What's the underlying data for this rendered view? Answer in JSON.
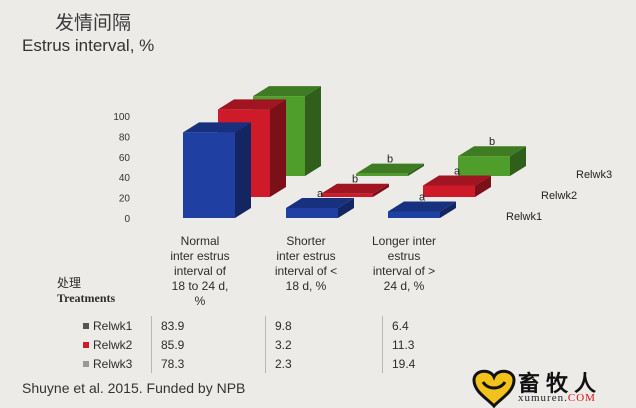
{
  "title_cn": "发情间隔",
  "title_en": "Estrus interval, %",
  "treatments_label_cn": "处理",
  "treatments_label_en": "Treatments",
  "source": "Shuyne et al. 2015.  Funded by NPB",
  "logo": {
    "text_cn": "畜牧人",
    "text_en": "xumuren.",
    "text_com": "COM"
  },
  "colors": {
    "Relwk1": "#1f3fa3",
    "Relwk2": "#cf1a2a",
    "Relwk3": "#4f9e2b"
  },
  "chart_data": {
    "type": "bar",
    "subtype": "3d-clustered",
    "title": "Estrus interval, %",
    "ylim": [
      0,
      100
    ],
    "yticks": [
      0,
      20,
      40,
      60,
      80,
      100
    ],
    "categories": [
      "Normal\ninter estrus\ninterval of\n18 to 24 d,\n%",
      "Shorter\ninter estrus\ninterval of <\n18 d, %",
      "Longer inter\nestrus\ninterval of  >\n24 d, %"
    ],
    "series": [
      {
        "name": "Relwk1",
        "values": [
          83.9,
          9.8,
          6.4
        ],
        "annotations": [
          "",
          "a",
          "a"
        ]
      },
      {
        "name": "Relwk2",
        "values": [
          85.9,
          3.2,
          11.3
        ],
        "annotations": [
          "",
          "b",
          "a"
        ]
      },
      {
        "name": "Relwk3",
        "values": [
          78.3,
          2.3,
          19.4
        ],
        "annotations": [
          "",
          "b",
          "b"
        ]
      }
    ]
  }
}
